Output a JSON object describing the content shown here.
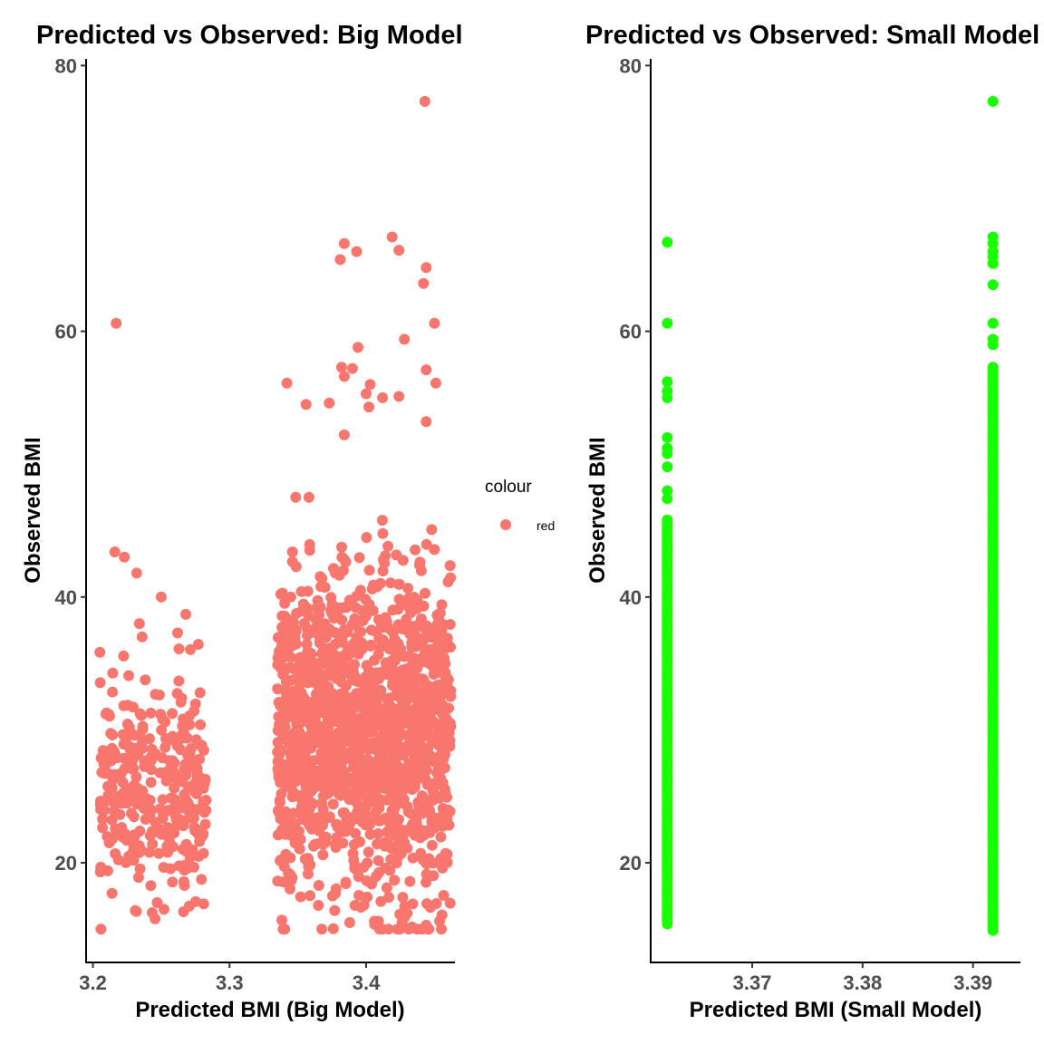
{
  "chart_data": [
    {
      "type": "scatter",
      "title": "Predicted vs Observed: Big Model",
      "xlabel": "Predicted BMI (Big Model)",
      "ylabel": "Observed BMI",
      "xlim": [
        3.195,
        3.465
      ],
      "ylim": [
        12.5,
        80.5
      ],
      "xticks": [
        3.2,
        3.3,
        3.4
      ],
      "xtick_labels": [
        "3.2",
        "3.3",
        "3.4"
      ],
      "yticks": [
        20,
        40,
        60,
        80
      ],
      "ytick_labels": [
        "20",
        "40",
        "60",
        "80"
      ],
      "grid": false,
      "color": "#F8766D",
      "legend": {
        "title": "colour",
        "placement": "right",
        "entries": [
          {
            "label": "red",
            "color": "#F8766D"
          }
        ]
      },
      "series": [
        {
          "clusters": [
            {
              "x_range": [
                3.205,
                3.283
              ],
              "y_center": 25.5,
              "y_sd": 3.8,
              "count": 320
            },
            {
              "x_range": [
                3.335,
                3.462
              ],
              "y_center": 29.5,
              "y_sd": 6.0,
              "count": 1500
            }
          ],
          "points": [
            {
              "x": 3.217,
              "y": 60.6
            },
            {
              "x": 3.216,
              "y": 43.4
            },
            {
              "x": 3.223,
              "y": 43.0
            },
            {
              "x": 3.232,
              "y": 41.8
            },
            {
              "x": 3.25,
              "y": 40.0
            },
            {
              "x": 3.234,
              "y": 38.0
            },
            {
              "x": 3.236,
              "y": 37.0
            },
            {
              "x": 3.262,
              "y": 37.3
            },
            {
              "x": 3.268,
              "y": 38.7
            },
            {
              "x": 3.263,
              "y": 36.1
            },
            {
              "x": 3.231,
              "y": 16.4
            },
            {
              "x": 3.247,
              "y": 17.0
            },
            {
              "x": 3.252,
              "y": 16.5
            },
            {
              "x": 3.214,
              "y": 17.7
            },
            {
              "x": 3.267,
              "y": 18.3
            },
            {
              "x": 3.443,
              "y": 77.3
            },
            {
              "x": 3.419,
              "y": 67.1
            },
            {
              "x": 3.384,
              "y": 66.6
            },
            {
              "x": 3.393,
              "y": 66.0
            },
            {
              "x": 3.381,
              "y": 65.4
            },
            {
              "x": 3.424,
              "y": 66.1
            },
            {
              "x": 3.444,
              "y": 64.8
            },
            {
              "x": 3.442,
              "y": 63.6
            },
            {
              "x": 3.45,
              "y": 60.6
            },
            {
              "x": 3.428,
              "y": 59.4
            },
            {
              "x": 3.394,
              "y": 58.8
            },
            {
              "x": 3.382,
              "y": 57.3
            },
            {
              "x": 3.39,
              "y": 57.2
            },
            {
              "x": 3.444,
              "y": 57.1
            },
            {
              "x": 3.342,
              "y": 56.1
            },
            {
              "x": 3.403,
              "y": 56.0
            },
            {
              "x": 3.451,
              "y": 56.1
            },
            {
              "x": 3.384,
              "y": 56.6
            },
            {
              "x": 3.4,
              "y": 55.3
            },
            {
              "x": 3.412,
              "y": 55.0
            },
            {
              "x": 3.424,
              "y": 55.1
            },
            {
              "x": 3.373,
              "y": 54.6
            },
            {
              "x": 3.356,
              "y": 54.5
            },
            {
              "x": 3.402,
              "y": 54.3
            },
            {
              "x": 3.444,
              "y": 53.2
            },
            {
              "x": 3.384,
              "y": 52.2
            },
            {
              "x": 3.406,
              "y": 15.6
            },
            {
              "x": 3.409,
              "y": 15.6
            },
            {
              "x": 3.441,
              "y": 15.0
            },
            {
              "x": 3.444,
              "y": 15.3
            },
            {
              "x": 3.388,
              "y": 15.5
            },
            {
              "x": 3.377,
              "y": 16.4
            },
            {
              "x": 3.43,
              "y": 16.2
            },
            {
              "x": 3.365,
              "y": 16.8
            }
          ]
        }
      ]
    },
    {
      "type": "scatter",
      "title": "Predicted vs Observed: Small Model",
      "xlabel": "Predicted BMI (Small Model)",
      "ylabel": "Observed BMI",
      "xlim": [
        3.3608,
        3.3943
      ],
      "ylim": [
        12.5,
        80.5
      ],
      "xticks": [
        3.37,
        3.38,
        3.39
      ],
      "xtick_labels": [
        "3.37",
        "3.38",
        "3.39"
      ],
      "yticks": [
        20,
        40,
        60,
        80
      ],
      "ytick_labels": [
        "20",
        "40",
        "60",
        "80"
      ],
      "grid": false,
      "color": "#19FF00",
      "series": [
        {
          "columns": [
            {
              "x": 3.3623,
              "y_min": 15.4,
              "y_dense_max": 46.0,
              "outliers": [
                47.4,
                48.0,
                49.8,
                50.8,
                51.2,
                52.0,
                55.0,
                55.5,
                56.2,
                60.6,
                66.7
              ]
            },
            {
              "x": 3.3918,
              "y_min": 14.9,
              "y_dense_max": 57.5,
              "outliers": [
                59.0,
                59.4,
                60.6,
                63.5,
                65.1,
                65.6,
                66.0,
                66.6,
                67.1,
                77.3
              ]
            }
          ]
        }
      ]
    }
  ]
}
